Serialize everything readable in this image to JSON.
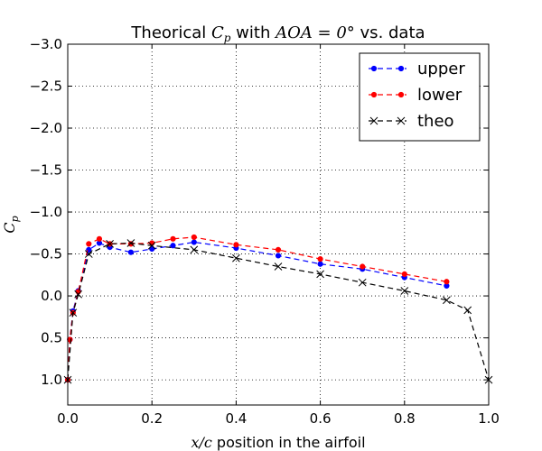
{
  "chart_data": {
    "type": "line",
    "title": {
      "prefix": "Theorical ",
      "cp_var": "C",
      "cp_sub": "p",
      "middle": " with ",
      "aoa_math": "AOA = 0°",
      "suffix": " vs. data"
    },
    "xlabel": {
      "math": "x/c",
      "text": " position in the airfoil"
    },
    "ylabel": {
      "var": "C",
      "sub": "p"
    },
    "xlim": [
      0.0,
      1.0
    ],
    "ylim": [
      -3.0,
      1.3
    ],
    "y_inverted": true,
    "grid": true,
    "legend_position": "top-right",
    "xticks": [
      {
        "value": 0.0,
        "label": "0.0"
      },
      {
        "value": 0.2,
        "label": "0.2"
      },
      {
        "value": 0.4,
        "label": "0.4"
      },
      {
        "value": 0.6,
        "label": "0.6"
      },
      {
        "value": 0.8,
        "label": "0.8"
      },
      {
        "value": 1.0,
        "label": "1.0"
      }
    ],
    "yticks": [
      {
        "value": -3.0,
        "label": "−3.0"
      },
      {
        "value": -2.5,
        "label": "−2.5"
      },
      {
        "value": -2.0,
        "label": "−2.0"
      },
      {
        "value": -1.5,
        "label": "−1.5"
      },
      {
        "value": -1.0,
        "label": "−1.0"
      },
      {
        "value": -0.5,
        "label": "−0.5"
      },
      {
        "value": 0.0,
        "label": "0.0"
      },
      {
        "value": 0.5,
        "label": "0.5"
      },
      {
        "value": 1.0,
        "label": "1.0"
      }
    ],
    "series": [
      {
        "name": "upper",
        "color": "#0000ff",
        "marker": "dot",
        "x": [
          0.0,
          0.005,
          0.0125,
          0.025,
          0.05,
          0.075,
          0.1,
          0.15,
          0.2,
          0.25,
          0.3,
          0.4,
          0.5,
          0.6,
          0.7,
          0.8,
          0.9
        ],
        "y": [
          1.0,
          0.52,
          0.18,
          -0.06,
          -0.55,
          -0.63,
          -0.58,
          -0.52,
          -0.56,
          -0.6,
          -0.64,
          -0.57,
          -0.48,
          -0.38,
          -0.32,
          -0.22,
          -0.12
        ]
      },
      {
        "name": "lower",
        "color": "#ff0000",
        "marker": "dot",
        "x": [
          0.0,
          0.005,
          0.0125,
          0.025,
          0.05,
          0.075,
          0.1,
          0.15,
          0.2,
          0.25,
          0.3,
          0.4,
          0.5,
          0.6,
          0.7,
          0.8,
          0.9
        ],
        "y": [
          1.0,
          0.52,
          0.2,
          -0.05,
          -0.62,
          -0.68,
          -0.62,
          -0.62,
          -0.63,
          -0.68,
          -0.7,
          -0.61,
          -0.55,
          -0.44,
          -0.35,
          -0.26,
          -0.17
        ]
      },
      {
        "name": "theo",
        "color": "#000000",
        "marker": "x",
        "x": [
          0.0,
          0.0125,
          0.025,
          0.05,
          0.1,
          0.15,
          0.2,
          0.3,
          0.4,
          0.5,
          0.6,
          0.7,
          0.8,
          0.9,
          0.95,
          1.0
        ],
        "y": [
          1.0,
          0.2,
          -0.02,
          -0.5,
          -0.62,
          -0.63,
          -0.6,
          -0.55,
          -0.45,
          -0.35,
          -0.26,
          -0.16,
          -0.06,
          0.05,
          0.17,
          1.0
        ]
      }
    ]
  }
}
